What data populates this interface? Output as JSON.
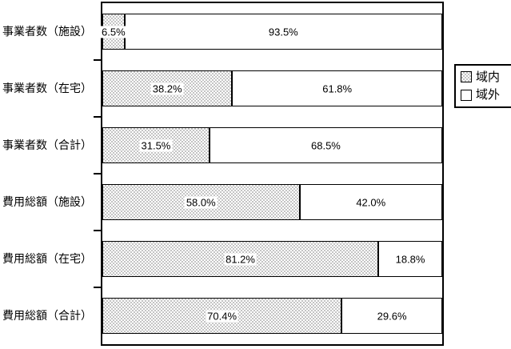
{
  "chart_data": {
    "type": "bar",
    "orientation": "horizontal",
    "stacked": true,
    "unit": "%",
    "xlim": [
      0,
      100
    ],
    "grid": false,
    "legend_position": "right",
    "categories": [
      "事業者数（施設）",
      "事業者数（在宅）",
      "事業者数（合計）",
      "費用総額（施設）",
      "費用総額（在宅）",
      "費用総額（合計）"
    ],
    "series": [
      {
        "name": "域内",
        "fill": "dot-pattern",
        "color": "#c4c4c4",
        "values": [
          6.5,
          38.2,
          31.5,
          58.0,
          81.2,
          70.4
        ],
        "labels": [
          "6.5%",
          "38.2%",
          "31.5%",
          "58.0%",
          "81.2%",
          "70.4%"
        ]
      },
      {
        "name": "域外",
        "fill": "solid-white",
        "color": "#ffffff",
        "values": [
          93.5,
          61.8,
          68.5,
          42.0,
          18.8,
          29.6
        ],
        "labels": [
          "93.5%",
          "61.8%",
          "68.5%",
          "42.0%",
          "18.8%",
          "29.6%"
        ]
      }
    ]
  },
  "legend": {
    "items": [
      {
        "label": "域内"
      },
      {
        "label": "域外"
      }
    ]
  },
  "colors": {
    "line": "#000000",
    "pattern_dot": "#c4c4c4",
    "background": "#ffffff"
  }
}
